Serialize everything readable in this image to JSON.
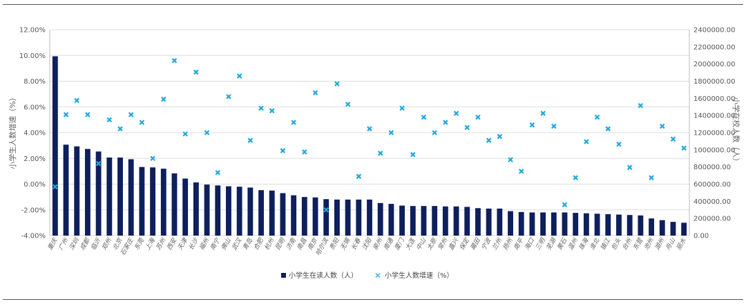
{
  "chart_data": {
    "type": "bar",
    "title": "",
    "ylabel_left": "小学生人数增速（%）",
    "ylabel_right": "小学在校人数（人）",
    "colors": {
      "bars": "#0d1f5c",
      "markers": "#1ea7e1",
      "grid": "#dddddd"
    },
    "y_left": {
      "min": -0.04,
      "max": 0.12,
      "ticks": [
        "-4.00%",
        "-2.00%",
        "0.00%",
        "2.00%",
        "4.00%",
        "6.00%",
        "8.00%",
        "10.00%",
        "12.00%"
      ]
    },
    "y_right": {
      "min": 0,
      "max": 2400000,
      "ticks": [
        "0.00",
        "200000.00",
        "400000.00",
        "600000.00",
        "800000.00",
        "1000000.00",
        "1200000.00",
        "1400000.00",
        "1600000.00",
        "1800000.00",
        "2000000.00",
        "2200000.00",
        "2400000.00"
      ]
    },
    "categories": [
      "重庆",
      "广州",
      "深圳",
      "成都",
      "临沂",
      "郑州",
      "北京",
      "石家庄",
      "东莞",
      "上海",
      "苏州",
      "西安",
      "天津",
      "长沙",
      "福州",
      "南宁",
      "佛山",
      "武汉",
      "青岛",
      "合肥",
      "杭州",
      "昆明",
      "济南",
      "南昌",
      "南京",
      "哈尔滨",
      "贵阳",
      "无锡",
      "长春",
      "沈阳",
      "泉州",
      "南通",
      "厦门",
      "大连",
      "中山",
      "太原",
      "常州",
      "嘉兴",
      "保定",
      "莆田",
      "宁波",
      "兰州",
      "扬州",
      "南平",
      "海口",
      "三明",
      "芜湖",
      "黄石",
      "温州",
      "珠海",
      "淮北",
      "镇江",
      "包头",
      "台州",
      "东营",
      "池州",
      "湖州",
      "舟山",
      "丽水"
    ],
    "series": [
      {
        "name": "小学生在读人数（人）",
        "type": "bar",
        "axis": "right",
        "values": [
          2090000,
          1060000,
          1040000,
          1010000,
          980000,
          910000,
          910000,
          890000,
          800000,
          795000,
          780000,
          725000,
          665000,
          620000,
          595000,
          585000,
          575000,
          570000,
          560000,
          530000,
          525000,
          495000,
          470000,
          450000,
          445000,
          425000,
          420000,
          420000,
          420000,
          420000,
          380000,
          370000,
          350000,
          345000,
          345000,
          345000,
          340000,
          340000,
          335000,
          320000,
          315000,
          315000,
          285000,
          275000,
          270000,
          270000,
          270000,
          270000,
          265000,
          260000,
          255000,
          250000,
          245000,
          240000,
          235000,
          200000,
          180000,
          160000,
          150000
        ]
      },
      {
        "name": "小学生人数增速（%）",
        "type": "scatter",
        "axis": "left",
        "values": [
          -0.002,
          0.054,
          0.065,
          0.054,
          0.016,
          0.05,
          0.043,
          0.054,
          0.048,
          0.02,
          0.066,
          0.096,
          0.039,
          0.087,
          0.04,
          0.009,
          0.068,
          0.084,
          0.034,
          0.059,
          0.057,
          0.026,
          0.048,
          0.025,
          0.071,
          -0.02,
          0.078,
          0.062,
          0.006,
          0.043,
          0.024,
          0.04,
          0.059,
          0.023,
          0.052,
          0.04,
          0.048,
          0.055,
          0.044,
          0.052,
          0.034,
          0.037,
          0.019,
          0.01,
          0.046,
          0.055,
          0.045,
          -0.016,
          0.005,
          0.033,
          0.052,
          0.043,
          0.031,
          0.013,
          0.061,
          0.005,
          0.045,
          0.035,
          0.028
        ]
      }
    ]
  }
}
